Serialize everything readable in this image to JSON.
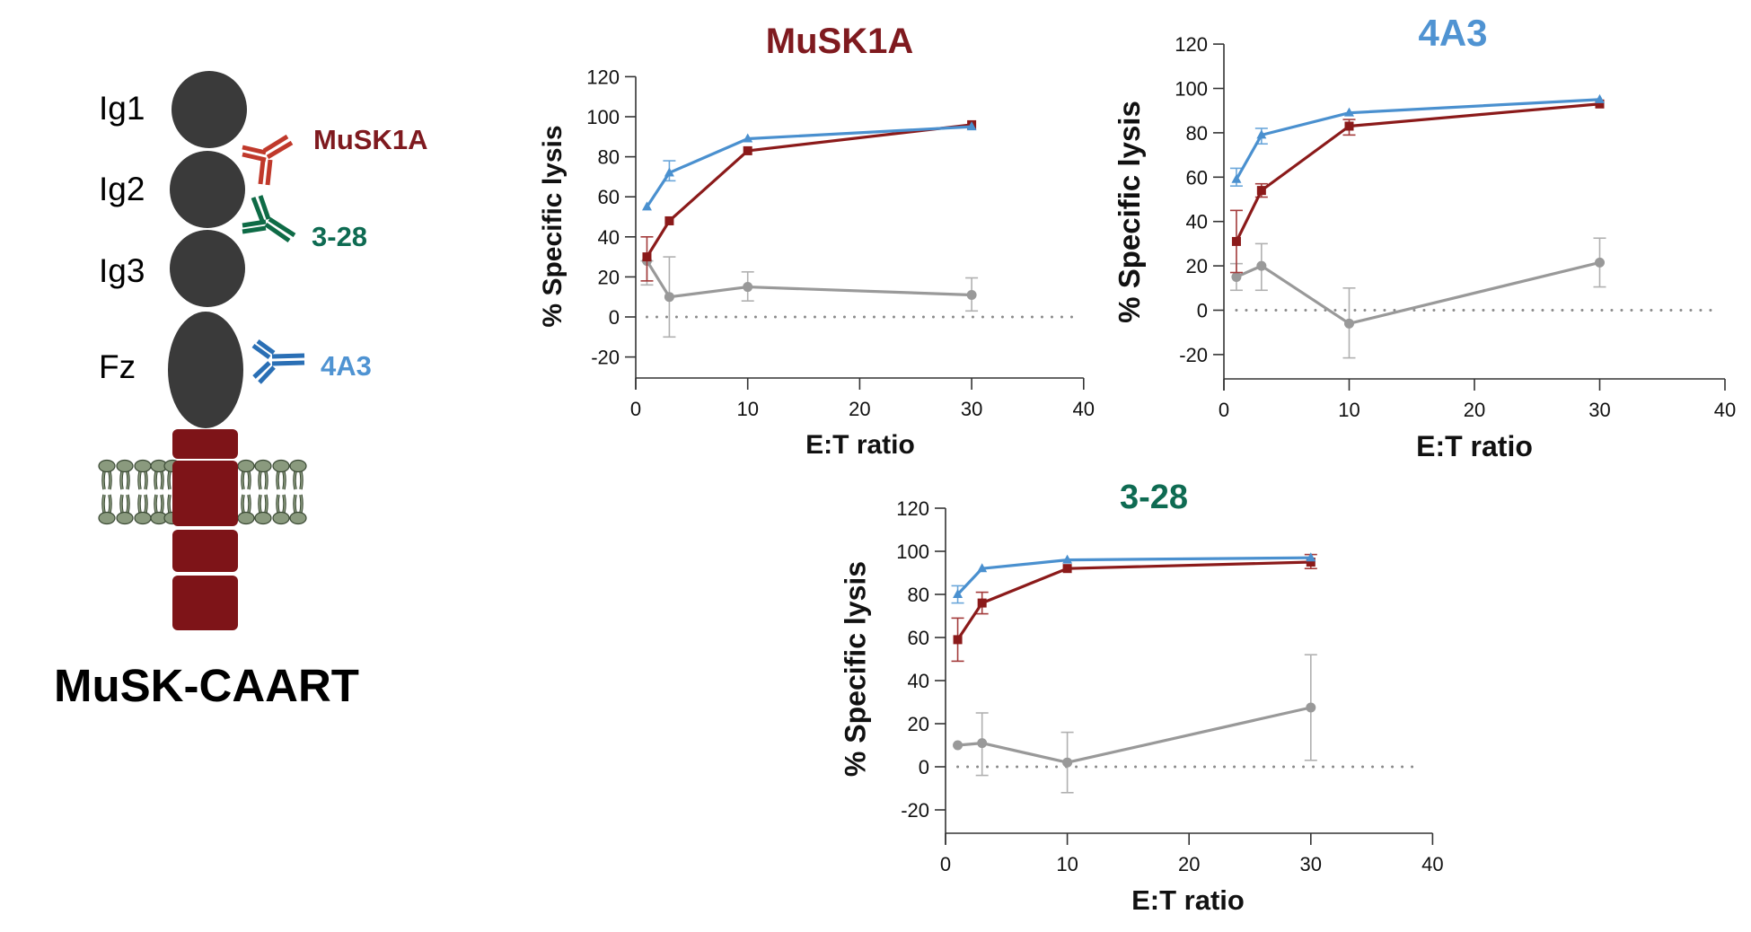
{
  "figure": {
    "construct_label": "MuSK-CAART",
    "domains": [
      {
        "label": "Ig1"
      },
      {
        "label": "Ig2"
      },
      {
        "label": "Ig3"
      },
      {
        "label": "Fz"
      }
    ],
    "antibodies": [
      {
        "label": "MuSK1A",
        "target_domain": "Ig1-Ig2",
        "color": "#7f1a1f",
        "icon_color": "#c0392b"
      },
      {
        "label": "3-28",
        "target_domain": "Ig2-Ig3",
        "color": "#0e6b52",
        "icon_color": "#0e6b46"
      },
      {
        "label": "4A3",
        "target_domain": "Fz",
        "color": "#4f93d2",
        "icon_color": "#2a6fb5"
      }
    ],
    "colors": {
      "domain": "#3a3a3a",
      "intracellular": "#7e1418",
      "lipid_head": "#8a9a7e",
      "lipid_outline": "#3b4a35"
    }
  },
  "series_style": {
    "blue": {
      "color": "#4a90cf",
      "error_color": "#6aa6da",
      "marker": "triangle"
    },
    "red": {
      "color": "#8b1a1a",
      "error_color": "#a33a3a",
      "marker": "square"
    },
    "gray": {
      "color": "#999999",
      "error_color": "#b0b0b0",
      "marker": "circle"
    }
  },
  "chart_data": [
    {
      "type": "line",
      "title": "MuSK1A",
      "title_color": "#7f1a1f",
      "xlabel": "E:T ratio",
      "ylabel": "% Specific lysis",
      "xlim": [
        0,
        40
      ],
      "ylim": [
        -30,
        120
      ],
      "xticks": [
        0,
        10,
        20,
        30,
        40
      ],
      "yticks": [
        -20,
        0,
        20,
        40,
        60,
        80,
        100,
        120
      ],
      "reference_line": {
        "y": 0,
        "style": "dotted"
      },
      "grid": false,
      "x": [
        1,
        3,
        10,
        30
      ],
      "series": [
        {
          "key": "blue",
          "values": [
            55,
            72,
            89,
            95
          ],
          "err_low": [
            55,
            68,
            89,
            95
          ],
          "err_high": [
            55,
            78,
            89,
            95
          ]
        },
        {
          "key": "red",
          "values": [
            30,
            48,
            83,
            96
          ],
          "err_low": [
            18,
            48,
            83,
            96
          ],
          "err_high": [
            40,
            48,
            83,
            96
          ]
        },
        {
          "key": "gray",
          "values": [
            28,
            10,
            15,
            11
          ],
          "err_low": [
            16,
            -10,
            8,
            3
          ],
          "err_high": [
            28,
            30,
            22.5,
            19.5
          ]
        }
      ]
    },
    {
      "type": "line",
      "title": "4A3",
      "title_color": "#4f93d2",
      "xlabel": "E:T ratio",
      "ylabel": "% Specific lysis",
      "xlim": [
        0,
        40
      ],
      "ylim": [
        -30,
        120
      ],
      "xticks": [
        0,
        10,
        20,
        30,
        40
      ],
      "yticks": [
        -20,
        0,
        20,
        40,
        60,
        80,
        100,
        120
      ],
      "reference_line": {
        "y": 0,
        "style": "dotted"
      },
      "grid": false,
      "x": [
        1,
        3,
        10,
        30
      ],
      "series": [
        {
          "key": "blue",
          "values": [
            59,
            79,
            89,
            95
          ],
          "err_low": [
            56,
            75,
            89,
            95
          ],
          "err_high": [
            64,
            82,
            89,
            95
          ]
        },
        {
          "key": "red",
          "values": [
            31,
            54,
            83,
            93
          ],
          "err_low": [
            17,
            51,
            79,
            93
          ],
          "err_high": [
            45,
            57,
            86,
            93
          ]
        },
        {
          "key": "gray",
          "values": [
            15,
            20,
            -6,
            21.5
          ],
          "err_low": [
            9,
            9,
            -21.5,
            10.5
          ],
          "err_high": [
            21,
            30,
            10,
            32.5
          ]
        }
      ]
    },
    {
      "type": "line",
      "title": "3-28",
      "title_color": "#0e6b52",
      "xlabel": "E:T ratio",
      "ylabel": "% Specific lysis",
      "xlim": [
        0,
        40
      ],
      "ylim": [
        -30,
        120
      ],
      "xticks": [
        0,
        10,
        20,
        30,
        40
      ],
      "yticks": [
        -20,
        0,
        20,
        40,
        60,
        80,
        100,
        120
      ],
      "reference_line": {
        "y": 0,
        "style": "dotted"
      },
      "grid": false,
      "x": [
        1,
        3,
        10,
        30
      ],
      "series": [
        {
          "key": "blue",
          "values": [
            80,
            92,
            96,
            97
          ],
          "err_low": [
            76,
            92,
            96,
            97
          ],
          "err_high": [
            84,
            92,
            96,
            97
          ]
        },
        {
          "key": "red",
          "values": [
            59,
            76,
            92,
            95
          ],
          "err_low": [
            49,
            71,
            92,
            92
          ],
          "err_high": [
            69,
            81,
            92,
            98.5
          ]
        },
        {
          "key": "gray",
          "values": [
            10,
            11,
            2,
            27.5
          ],
          "err_low": [
            10,
            -4,
            -12,
            3
          ],
          "err_high": [
            10,
            25,
            16,
            52
          ]
        }
      ]
    }
  ]
}
